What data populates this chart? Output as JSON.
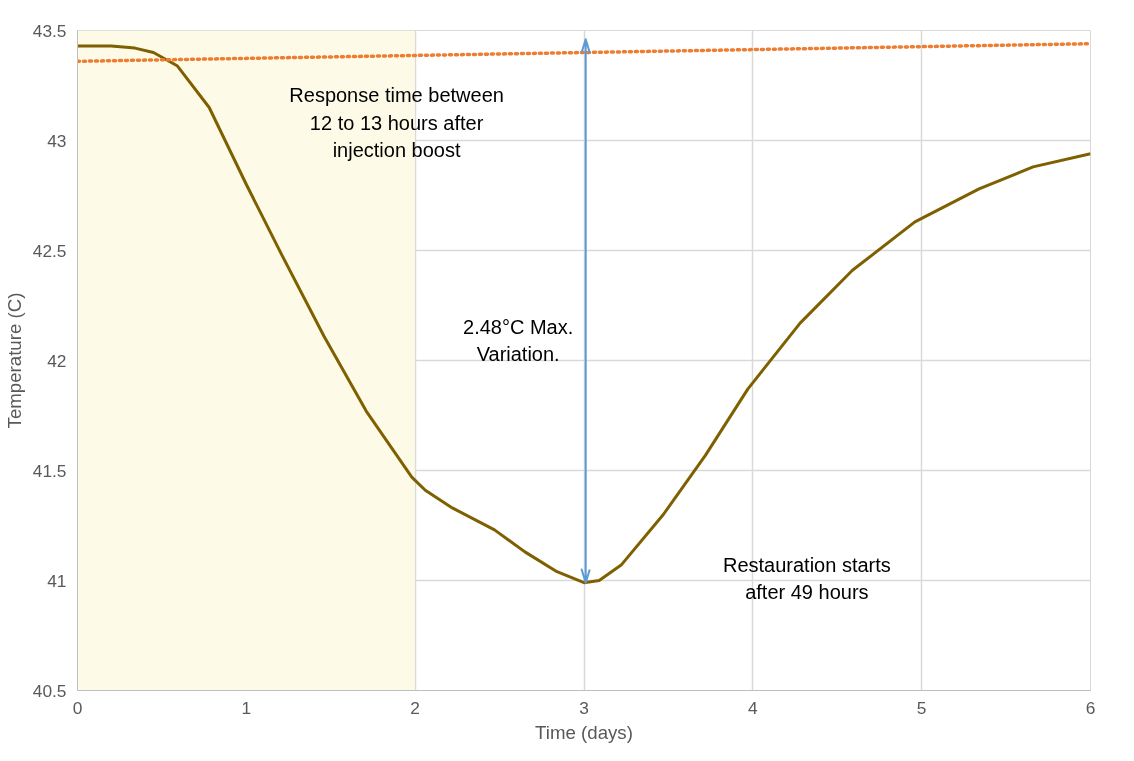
{
  "chart_data": {
    "type": "line",
    "xlabel": "Time (days)",
    "ylabel": "Temperature (C)",
    "xlim": [
      0,
      6
    ],
    "ylim": [
      40.5,
      43.5
    ],
    "xticks": [
      0,
      1,
      2,
      3,
      4,
      5,
      6
    ],
    "yticks": [
      40.5,
      41,
      41.5,
      42,
      42.5,
      43,
      43.5
    ],
    "grid": true,
    "series": [
      {
        "color": "#7f6000",
        "line_style": "solid",
        "x": [
          0,
          0.2,
          0.34,
          0.45,
          0.59,
          0.78,
          1.0,
          1.21,
          1.46,
          1.71,
          1.98,
          2.06,
          2.22,
          2.47,
          2.65,
          2.84,
          3.0,
          3.09,
          3.22,
          3.47,
          3.72,
          3.97,
          4.28,
          4.59,
          4.96,
          5.34,
          5.66,
          6.0
        ],
        "values": [
          43.43,
          43.43,
          43.42,
          43.4,
          43.34,
          43.15,
          42.8,
          42.48,
          42.11,
          41.77,
          41.47,
          41.41,
          41.33,
          41.23,
          41.13,
          41.04,
          40.99,
          41.0,
          41.07,
          41.3,
          41.57,
          41.87,
          42.17,
          42.41,
          42.63,
          42.78,
          42.88,
          42.94
        ]
      },
      {
        "color": "#ed7d31",
        "line_style": "dotted",
        "x": [
          0,
          6
        ],
        "values": [
          43.36,
          43.44
        ]
      }
    ],
    "bands": [
      {
        "axis": "x",
        "from": 0,
        "to": 2,
        "color": "#fdfbe8"
      }
    ],
    "ref_lines": [
      {
        "axis": "x",
        "value": 3.01,
        "color": "#5b9bd5"
      }
    ],
    "annotations": [
      "Response time between\n12 to 13 hours after\ninjection boost",
      "2.48°C Max.\nVariation.",
      "Restauration starts\nafter 49 hours"
    ]
  }
}
